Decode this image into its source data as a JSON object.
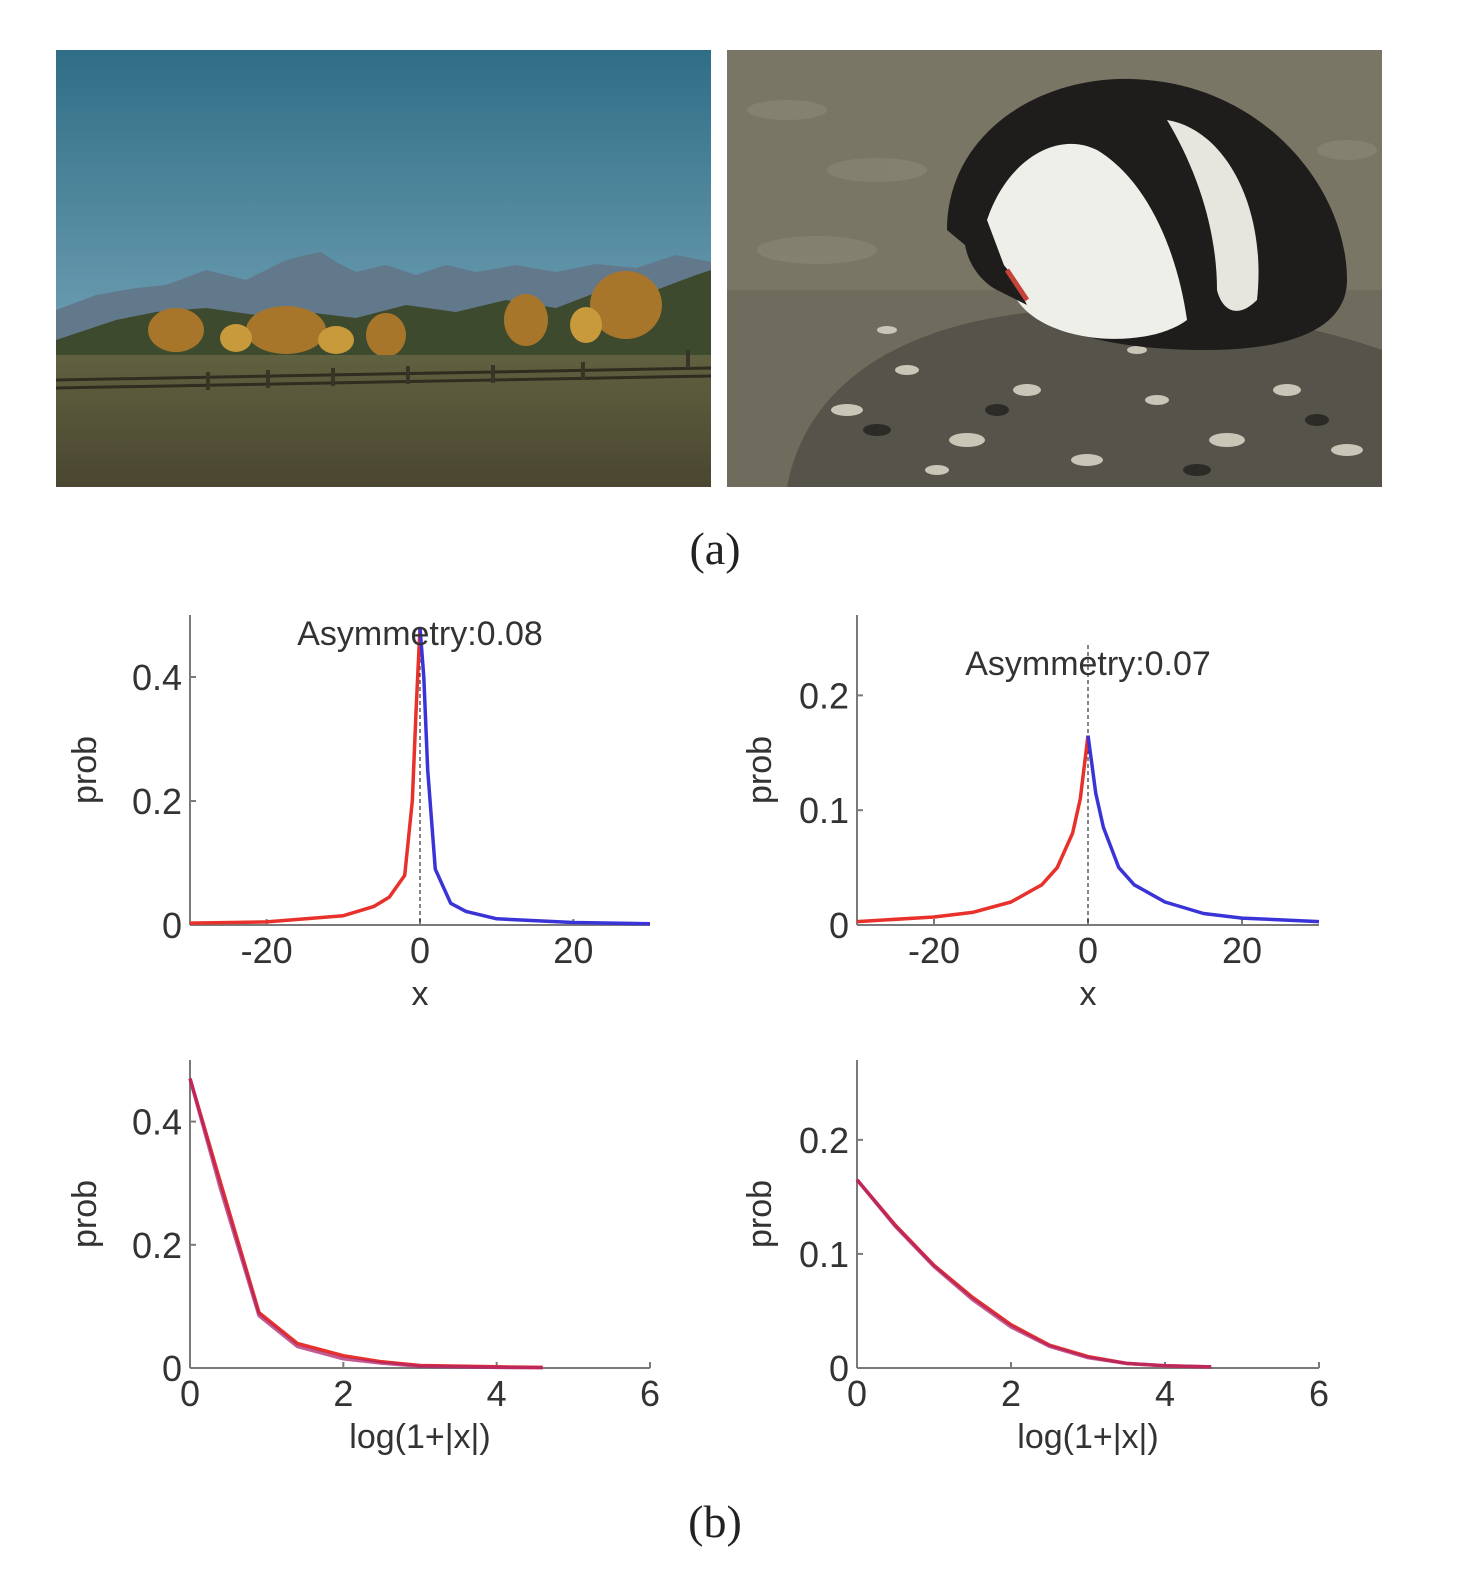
{
  "figure": {
    "caption_a": "(a)",
    "caption_b": "(b)",
    "images": [
      {
        "subject": "landscape-photo"
      },
      {
        "subject": "penguin-photo"
      }
    ]
  },
  "colors": {
    "negative_side": "#e8312a",
    "positive_side": "#3a34d8",
    "overlay": "#b0246a",
    "axis": "#7a7a7a",
    "text": "#333333"
  },
  "chart_data": [
    {
      "type": "line",
      "title": "Asymmetry:0.08",
      "xlabel": "x",
      "ylabel": "prob",
      "xlim": [
        -30,
        30
      ],
      "ylim": [
        0,
        0.5
      ],
      "xticks": [
        -20,
        0,
        20
      ],
      "yticks": [
        0,
        0.2,
        0.4
      ],
      "center_line": 0,
      "series": [
        {
          "side": "negative",
          "x": [
            -30,
            -20,
            -10,
            -6,
            -4,
            -2,
            -1,
            -0.5,
            0
          ],
          "y": [
            0.003,
            0.005,
            0.015,
            0.03,
            0.045,
            0.08,
            0.2,
            0.35,
            0.48
          ]
        },
        {
          "side": "positive",
          "x": [
            0,
            0.5,
            1,
            2,
            4,
            6,
            10,
            20,
            30
          ],
          "y": [
            0.48,
            0.4,
            0.25,
            0.09,
            0.035,
            0.022,
            0.01,
            0.004,
            0.002
          ]
        }
      ]
    },
    {
      "type": "line",
      "title": "Asymmetry:0.07",
      "xlabel": "x",
      "ylabel": "prob",
      "xlim": [
        -30,
        30
      ],
      "ylim": [
        0,
        0.27
      ],
      "xticks": [
        -20,
        0,
        20
      ],
      "yticks": [
        0,
        0.1,
        0.2
      ],
      "center_line": 0,
      "series": [
        {
          "side": "negative",
          "x": [
            -30,
            -20,
            -15,
            -10,
            -6,
            -4,
            -2,
            -1,
            0
          ],
          "y": [
            0.003,
            0.007,
            0.011,
            0.02,
            0.035,
            0.05,
            0.08,
            0.11,
            0.165
          ]
        },
        {
          "side": "positive",
          "x": [
            0,
            0.5,
            1,
            2,
            4,
            6,
            10,
            15,
            20,
            30
          ],
          "y": [
            0.165,
            0.14,
            0.115,
            0.085,
            0.05,
            0.035,
            0.02,
            0.01,
            0.006,
            0.003
          ]
        }
      ]
    },
    {
      "type": "line",
      "xlabel": "log(1+|x|)",
      "ylabel": "prob",
      "xlim": [
        0,
        6
      ],
      "ylim": [
        0,
        0.5
      ],
      "xticks": [
        0,
        2,
        4,
        6
      ],
      "yticks": [
        0,
        0.2,
        0.4
      ],
      "series": [
        {
          "side": "negative",
          "x": [
            0,
            0.4,
            0.9,
            1.4,
            2,
            2.5,
            3,
            4,
            4.6
          ],
          "y": [
            0.47,
            0.3,
            0.09,
            0.04,
            0.02,
            0.01,
            0.004,
            0.002,
            0.001
          ]
        },
        {
          "side": "positive",
          "x": [
            0,
            0.4,
            0.9,
            1.4,
            2,
            2.5,
            3,
            4,
            4.6
          ],
          "y": [
            0.47,
            0.29,
            0.085,
            0.035,
            0.015,
            0.008,
            0.003,
            0.001,
            0.0005
          ]
        }
      ]
    },
    {
      "type": "line",
      "xlabel": "log(1+|x|)",
      "ylabel": "prob",
      "xlim": [
        0,
        6
      ],
      "ylim": [
        0,
        0.27
      ],
      "xticks": [
        0,
        2,
        4,
        6
      ],
      "yticks": [
        0,
        0.1,
        0.2
      ],
      "series": [
        {
          "side": "negative",
          "x": [
            0,
            0.5,
            1,
            1.5,
            2,
            2.5,
            3,
            3.5,
            4,
            4.6
          ],
          "y": [
            0.165,
            0.125,
            0.09,
            0.062,
            0.038,
            0.02,
            0.01,
            0.004,
            0.002,
            0.001
          ]
        },
        {
          "side": "positive",
          "x": [
            0,
            0.5,
            1,
            1.5,
            2,
            2.5,
            3,
            3.5,
            4,
            4.6
          ],
          "y": [
            0.165,
            0.124,
            0.089,
            0.06,
            0.036,
            0.019,
            0.009,
            0.004,
            0.002,
            0.001
          ]
        }
      ]
    }
  ]
}
